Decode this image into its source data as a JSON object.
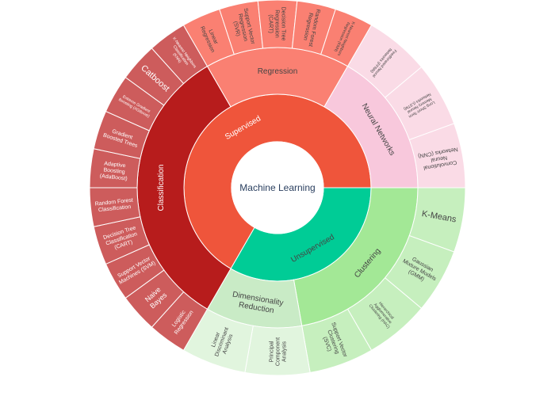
{
  "chart_data": {
    "type": "sunburst",
    "root": {
      "label": "Machine Learning",
      "color": "#ffffff",
      "text_color": "#2a3f5f"
    },
    "nodes": [
      {
        "label": "Supervised",
        "value": 50,
        "color": "#ef553b",
        "children": [
          {
            "label": "Classification",
            "value": 25,
            "color": "#b71c1c",
            "children": [
              {
                "label": "Logistic Regression",
                "value": 2.5,
                "color": "#cd5c5c"
              },
              {
                "label": "Naive Bayes",
                "value": 2.5,
                "color": "#cd5c5c"
              },
              {
                "label": "Support Vector Machines (SVM)",
                "value": 2.5,
                "color": "#cd5c5c"
              },
              {
                "label": "Decision Tree Classification (CART)",
                "value": 2.5,
                "color": "#cd5c5c"
              },
              {
                "label": "Random Forest Classification",
                "value": 2.5,
                "color": "#cd5c5c"
              },
              {
                "label": "Adaptive Boosting (AdaBoost)",
                "value": 2.5,
                "color": "#cd5c5c"
              },
              {
                "label": "Gradient Boosted Trees",
                "value": 2.5,
                "color": "#cd5c5c"
              },
              {
                "label": "Extreme Gradient Boosting (XGBoost)",
                "value": 2.5,
                "color": "#cd5c5c"
              },
              {
                "label": "Catboost",
                "value": 2.5,
                "color": "#cd5c5c"
              },
              {
                "label": "K-Nearest Neighbors Classification (KNN)",
                "value": 2.5,
                "color": "#cd5c5c"
              }
            ]
          },
          {
            "label": "Regression",
            "value": 12.5,
            "color": "#fa8072",
            "children": [
              {
                "label": "Linear Regression",
                "value": 2.5,
                "color": "#fa8072"
              },
              {
                "label": "Support Vector Regression (SVR)",
                "value": 2.5,
                "color": "#fa8072"
              },
              {
                "label": "Decision Tree Regression (CART)",
                "value": 2.5,
                "color": "#fa8072"
              },
              {
                "label": "Random Forest Regression",
                "value": 2.5,
                "color": "#fa8072"
              },
              {
                "label": "K-Nearest Neighbors Regression (KNN)",
                "value": 2.5,
                "color": "#fa8072"
              }
            ]
          },
          {
            "label": "Neural Networks",
            "value": 12.5,
            "color": "#f8c8dc",
            "children": [
              {
                "label": "Feedforward Neural Networks (FFNN)",
                "value": 4.1667,
                "color": "#fadbe6"
              },
              {
                "label": "Long Short-Term Memory Neural Networks (LSTM)",
                "value": 4.1667,
                "color": "#fadbe6"
              },
              {
                "label": "Convolutional Neural Networks (CNN)",
                "value": 4.1666,
                "color": "#fadbe6"
              }
            ]
          }
        ]
      },
      {
        "label": "Unsupervised",
        "value": 25,
        "color": "#00cc96",
        "children": [
          {
            "label": "Clustering",
            "value": 16.6667,
            "color": "#a3e896",
            "children": [
              {
                "label": "K-Means",
                "value": 4.1667,
                "color": "#c6efbe"
              },
              {
                "label": "Gaussian Mixture Models (GMM)",
                "value": 4.1667,
                "color": "#c6efbe"
              },
              {
                "label": "Hierarchical Agglomerative Clustering (HAC)",
                "value": 4.1667,
                "color": "#c6efbe"
              },
              {
                "label": "Support Vector Clustering (SVC)",
                "value": 4.1666,
                "color": "#c6efbe"
              }
            ]
          },
          {
            "label": "Dimensionality Reduction",
            "value": 8.3333,
            "color": "#c9ebc6",
            "children": [
              {
                "label": "Principal Component Analysis",
                "value": 4.1667,
                "color": "#e1f5de"
              },
              {
                "label": "Linear Discriminant Analysis",
                "value": 4.1666,
                "color": "#e1f5de"
              }
            ]
          }
        ]
      }
    ]
  }
}
